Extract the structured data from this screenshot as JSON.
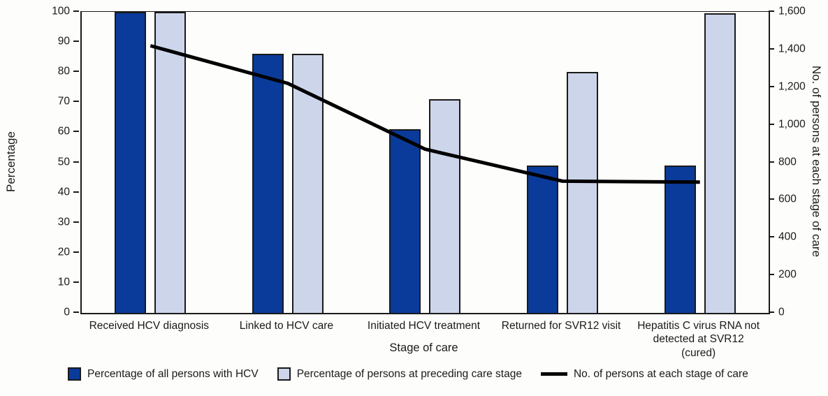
{
  "chart_data": {
    "type": "bar",
    "subtype": "combo-bar-line-dual-axis",
    "categories": [
      "Received HCV diagnosis",
      "Linked to HCV care",
      "Initiated HCV treatment",
      "Returned for SVR12 visit",
      "Hepatitis C virus RNA not detected at SVR12 (cured)"
    ],
    "series": [
      {
        "name": "Percentage of all persons with HCV",
        "type": "bar",
        "axis": "left",
        "color": "#0A3B9B",
        "values": [
          100,
          86,
          61,
          49,
          49
        ]
      },
      {
        "name": "Percentage of persons at preceding care stage",
        "type": "bar",
        "axis": "left",
        "color": "#CDD5EB",
        "values": [
          100,
          86,
          71,
          80,
          99.5
        ]
      },
      {
        "name": "No. of persons at each stage of care",
        "type": "line",
        "axis": "right",
        "color": "#000000",
        "values": [
          1420,
          1220,
          870,
          700,
          695
        ]
      }
    ],
    "left_axis": {
      "label": "Percentage",
      "min": 0,
      "max": 100,
      "tick_step": 10,
      "tick_labels": [
        "0",
        "10",
        "20",
        "30",
        "40",
        "50",
        "60",
        "70",
        "80",
        "90",
        "100"
      ]
    },
    "right_axis": {
      "label": "No. of persons at each stage of care",
      "min": 0,
      "max": 1600,
      "tick_step": 200,
      "tick_labels": [
        "0",
        "200",
        "400",
        "600",
        "800",
        "1,000",
        "1,200",
        "1,400",
        "1,600"
      ]
    },
    "xlabel": "Stage of care",
    "grid": false,
    "legend_position": "bottom",
    "bar_border_color": "#1a1a1a",
    "line_width": 5
  }
}
